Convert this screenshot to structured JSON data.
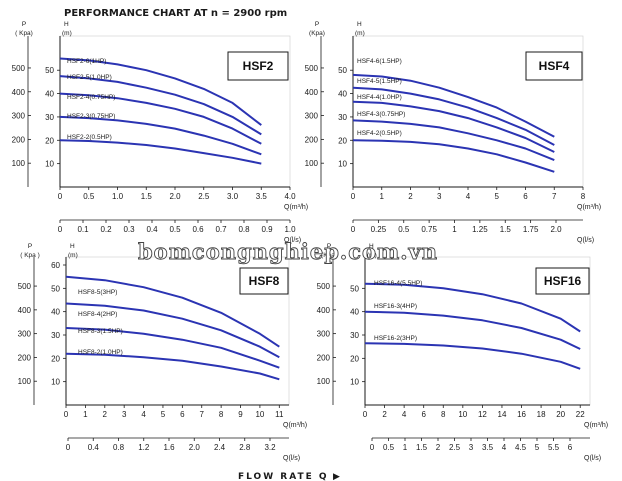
{
  "header": {
    "title": "PERFORMANCE CHART AT  n = 2900 rpm"
  },
  "footer": {
    "label": "FLOW   RATE Q",
    "arrow": "▶"
  },
  "watermark": {
    "text": "bomcongnghiep.com.vn"
  },
  "colors": {
    "curve": "#2b34b3",
    "axis": "#1a1a1a",
    "grid": "#999999"
  },
  "chart_data": [
    {
      "type": "line",
      "title": "HSF2",
      "p_label": "P",
      "p_unit": "( Kpa)",
      "h_label": "H",
      "h_unit": "(m)",
      "x_unit": "Q(m³/h)",
      "x2_unit": "Q(l/s)",
      "xlim": [
        0,
        4.0
      ],
      "xticks": [
        "0",
        "0.5",
        "1.0",
        "1.5",
        "2.0",
        "2.5",
        "3.0",
        "3.5",
        "4.0"
      ],
      "x2ticks": [
        "0",
        "0.1",
        "0.2",
        "0.3",
        "0.4",
        "0.5",
        "0.6",
        "0.7",
        "0.8",
        "0.9",
        "1.0"
      ],
      "ylim": [
        0,
        60
      ],
      "hticks": [
        "10",
        "20",
        "30",
        "40",
        "50"
      ],
      "pticks": [
        "100",
        "200",
        "300",
        "400",
        "500"
      ],
      "series": [
        {
          "name": "HSF2-6(1HP)",
          "x": [
            0,
            0.5,
            1.0,
            1.5,
            2.0,
            2.5,
            3.0,
            3.5
          ],
          "y": [
            55,
            54.2,
            52.5,
            50,
            46.5,
            42,
            36,
            26.5
          ]
        },
        {
          "name": "HSF2-5(1.0HP)",
          "x": [
            0,
            0.5,
            1.0,
            1.5,
            2.0,
            2.5,
            3.0,
            3.5
          ],
          "y": [
            47.5,
            46.5,
            45,
            42.5,
            39.5,
            35.5,
            30,
            22.5
          ]
        },
        {
          "name": "HSF2-4(0.75HP)",
          "x": [
            0,
            0.5,
            1.0,
            1.5,
            2.0,
            2.5,
            3.0,
            3.5
          ],
          "y": [
            40,
            39.3,
            38,
            36,
            33.5,
            30,
            25,
            18.5
          ]
        },
        {
          "name": "HSF2-3(0.75HP)",
          "x": [
            0,
            0.5,
            1.0,
            1.5,
            2.0,
            2.5,
            3.0,
            3.5
          ],
          "y": [
            30,
            29.5,
            28.5,
            27,
            25,
            22,
            18.5,
            14
          ]
        },
        {
          "name": "HSF2-2(0.5HP)",
          "x": [
            0,
            0.5,
            1.0,
            1.5,
            2.0,
            2.5,
            3.0,
            3.5
          ],
          "y": [
            20,
            19.7,
            19,
            18,
            16.5,
            14.5,
            12.5,
            10
          ]
        }
      ]
    },
    {
      "type": "line",
      "title": "HSF4",
      "p_label": "P",
      "p_unit": "(Kpa)",
      "h_label": "H",
      "h_unit": "(m)",
      "x_unit": "Q(m³/h)",
      "x2_unit": "Q(l/s)",
      "xlim": [
        0,
        8
      ],
      "xticks": [
        "0",
        "1",
        "2",
        "3",
        "4",
        "5",
        "6",
        "7",
        "8"
      ],
      "x2ticks": [
        "0",
        "0.25",
        "0.5",
        "0.75",
        "1",
        "1.25",
        "1.5",
        "1.75",
        "2.0"
      ],
      "ylim": [
        0,
        60
      ],
      "hticks": [
        "10",
        "20",
        "30",
        "40",
        "50"
      ],
      "pticks": [
        "100",
        "200",
        "300",
        "400",
        "500"
      ],
      "series": [
        {
          "name": "HSF4-6(1.5HP)",
          "x": [
            0,
            1,
            2,
            3,
            4,
            5,
            6,
            7
          ],
          "y": [
            48,
            47.3,
            45.5,
            42.5,
            38.5,
            34,
            28,
            21.5
          ]
        },
        {
          "name": "HSF4-5(1.5HP)",
          "x": [
            0,
            1,
            2,
            3,
            4,
            5,
            6,
            7
          ],
          "y": [
            42.5,
            41.8,
            40,
            37.5,
            34,
            29.5,
            24.5,
            18
          ]
        },
        {
          "name": "HSF4-4(1.0HP)",
          "x": [
            0,
            1,
            2,
            3,
            4,
            5,
            6,
            7
          ],
          "y": [
            36.5,
            36,
            34.5,
            32.5,
            29.5,
            25.5,
            21,
            15
          ]
        },
        {
          "name": "HSF4-3(0.75HP)",
          "x": [
            0,
            1,
            2,
            3,
            4,
            5,
            6,
            7
          ],
          "y": [
            28.5,
            28,
            27,
            25.5,
            23,
            20,
            16.5,
            11.5
          ]
        },
        {
          "name": "HSF4-2(0.5HP)",
          "x": [
            0,
            1,
            2,
            3,
            4,
            5,
            6,
            7
          ],
          "y": [
            20,
            19.8,
            19.3,
            18.3,
            16.5,
            14,
            10.5,
            6.5
          ]
        }
      ]
    },
    {
      "type": "line",
      "title": "HSF8",
      "p_label": "P",
      "p_unit": "( Kpa )",
      "h_label": "H",
      "h_unit": "(m)",
      "x_unit": "Q(m³/h)",
      "x2_unit": "Q(l/s)",
      "xlim": [
        0,
        12
      ],
      "xticks": [
        "0",
        "1",
        "2",
        "3",
        "4",
        "5",
        "6",
        "7",
        "8",
        "9",
        "10",
        "11"
      ],
      "x2ticks": [
        "0",
        "0.4",
        "0.8",
        "1.2",
        "1.6",
        "2.0",
        "2.4",
        "2.8",
        "3.2"
      ],
      "ylim": [
        0,
        60
      ],
      "hticks": [
        "10",
        "20",
        "30",
        "40",
        "50",
        "60"
      ],
      "pticks": [
        "100",
        "200",
        "300",
        "400",
        "500"
      ],
      "series": [
        {
          "name": "HSF8-5(3HP)",
          "x": [
            0,
            2,
            4,
            6,
            8,
            10,
            11
          ],
          "y": [
            55,
            53.5,
            50.5,
            46,
            39.5,
            30.5,
            25
          ]
        },
        {
          "name": "HSF8-4(2HP)",
          "x": [
            0,
            2,
            4,
            6,
            8,
            10,
            11
          ],
          "y": [
            43.5,
            42.5,
            40.5,
            37,
            32,
            25,
            20.5
          ]
        },
        {
          "name": "HSF8-3(1.5HP)",
          "x": [
            0,
            2,
            4,
            6,
            8,
            10,
            11
          ],
          "y": [
            33,
            32.3,
            30.5,
            28,
            24.5,
            19,
            16
          ]
        },
        {
          "name": "HSF8-2(1.0HP)",
          "x": [
            0,
            2,
            4,
            6,
            8,
            10,
            11
          ],
          "y": [
            22,
            21.5,
            20.5,
            19,
            16.5,
            13.5,
            11
          ]
        }
      ]
    },
    {
      "type": "line",
      "title": "HSF16",
      "p_label": "P",
      "p_unit": "(Kpa)",
      "h_label": "H",
      "h_unit": "(m)",
      "x_unit": "Q(m³/h)",
      "x2_unit": "Q(l/s)",
      "xlim": [
        0,
        22
      ],
      "xticks": [
        "0",
        "2",
        "4",
        "6",
        "8",
        "10",
        "12",
        "14",
        "16",
        "18",
        "20",
        "22"
      ],
      "x2ticks": [
        "0",
        "0.5",
        "1",
        "1.5",
        "2",
        "2.5",
        "3",
        "3.5",
        "4",
        "4.5",
        "5",
        "5.5",
        "6"
      ],
      "ylim": [
        0,
        60
      ],
      "hticks": [
        "10",
        "20",
        "30",
        "40",
        "50"
      ],
      "pticks": [
        "100",
        "200",
        "300",
        "400",
        "500"
      ],
      "series": [
        {
          "name": "HSF16-4(5.5HP)",
          "x": [
            0,
            4,
            8,
            12,
            16,
            20,
            22
          ],
          "y": [
            52,
            51.5,
            50,
            47.5,
            43.5,
            37,
            31.5
          ]
        },
        {
          "name": "HSF16-3(4HP)",
          "x": [
            0,
            4,
            8,
            12,
            16,
            20,
            22
          ],
          "y": [
            40,
            39.5,
            38.3,
            36.3,
            33,
            28,
            24
          ]
        },
        {
          "name": "HSF16-2(3HP)",
          "x": [
            0,
            4,
            8,
            12,
            16,
            20,
            22
          ],
          "y": [
            26.5,
            26.2,
            25.5,
            24.2,
            22,
            18.5,
            15.5
          ]
        }
      ]
    }
  ]
}
